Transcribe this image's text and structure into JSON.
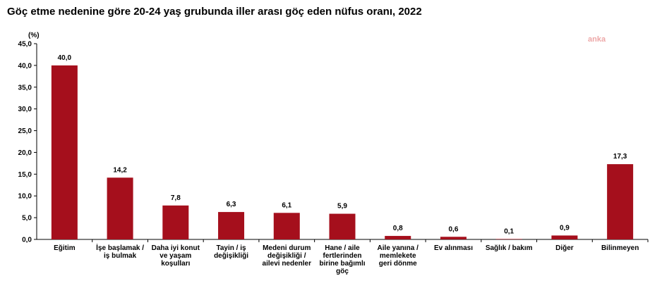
{
  "title": "Göç etme nedenine göre 20-24 yaş grubunda iller arası göç eden nüfus oranı, 2022",
  "watermark": "anka",
  "colors": {
    "bar": "#a50f1c",
    "axis": "#000000",
    "grid": "#d0d0d0"
  },
  "chart_data": {
    "type": "bar",
    "title": "Göç etme nedenine göre 20-24 yaş grubunda iller arası göç eden nüfus oranı, 2022",
    "ylabel": "(%)",
    "ylim": [
      0,
      45
    ],
    "yticks": [
      "0,0",
      "5,0",
      "10,0",
      "15,0",
      "20,0",
      "25,0",
      "30,0",
      "35,0",
      "40,0",
      "45,0"
    ],
    "grid": false,
    "categories": [
      [
        "Eğitim"
      ],
      [
        "İşe başlamak /",
        "iş bulmak"
      ],
      [
        "Daha iyi konut",
        "ve yaşam",
        "koşulları"
      ],
      [
        "Tayin / iş",
        "değişikliği"
      ],
      [
        "Medeni durum",
        "değişikliği /",
        "ailevi nedenler"
      ],
      [
        "Hane / aile",
        "fertlerinden",
        "birine bağımlı",
        "göç"
      ],
      [
        "Aile yanına /",
        "memlekete",
        "geri dönme"
      ],
      [
        "Ev alınması"
      ],
      [
        "Sağlık / bakım"
      ],
      [
        "Diğer"
      ],
      [
        "Bilinmeyen"
      ]
    ],
    "values": [
      40.0,
      14.2,
      7.8,
      6.3,
      6.1,
      5.9,
      0.8,
      0.6,
      0.1,
      0.9,
      17.3
    ],
    "value_labels": [
      "40,0",
      "14,2",
      "7,8",
      "6,3",
      "6,1",
      "5,9",
      "0,8",
      "0,6",
      "0,1",
      "0,9",
      "17,3"
    ]
  }
}
